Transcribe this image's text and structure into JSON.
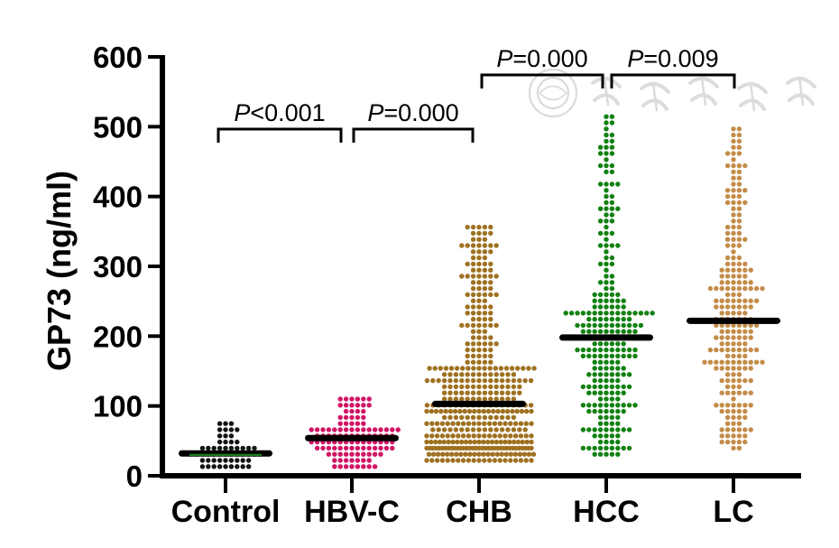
{
  "figure": {
    "background": "#ffffff",
    "axis_color": "#000000",
    "watermark": {
      "text": "中华医学会",
      "color": "#d7d7d7"
    }
  },
  "chart_data": {
    "type": "scatter",
    "variant": "beeswarm-dot-plot",
    "title": "",
    "xlabel": "",
    "ylabel": "GP73 (ng/ml)",
    "ylim": [
      0,
      600
    ],
    "yticks": [
      0,
      100,
      200,
      300,
      400,
      500,
      600
    ],
    "grid": false,
    "legend_position": "none",
    "categories": [
      "Control",
      "HBV-C",
      "CHB",
      "HCC",
      "LC"
    ],
    "series": [
      {
        "name": "Control",
        "color": "#141414",
        "n": 55,
        "min": 8,
        "q1": 24,
        "median": 32,
        "q3": 44,
        "max": 78
      },
      {
        "name": "HBV-C",
        "color": "#d11465",
        "n": 110,
        "min": 10,
        "q1": 38,
        "median": 54,
        "q3": 68,
        "max": 115
      },
      {
        "name": "CHB",
        "color": "#9e7120",
        "n": 420,
        "min": 20,
        "q1": 52,
        "median": 103,
        "q3": 160,
        "max": 360
      },
      {
        "name": "HCC",
        "color": "#128112",
        "n": 260,
        "min": 28,
        "q1": 120,
        "median": 198,
        "q3": 252,
        "max": 512
      },
      {
        "name": "LC",
        "color": "#c38c48",
        "n": 230,
        "min": 40,
        "q1": 150,
        "median": 222,
        "q3": 300,
        "max": 495
      }
    ],
    "median_bar": {
      "color": "#000000",
      "width": 104,
      "thickness": 7,
      "control_accent_color": "#1d7a1d"
    },
    "comparisons": [
      {
        "groups": [
          "Control",
          "HBV-C"
        ],
        "label": "P<0.001",
        "level": "low"
      },
      {
        "groups": [
          "HBV-C",
          "CHB"
        ],
        "label": "P=0.000",
        "level": "low"
      },
      {
        "groups": [
          "CHB",
          "HCC"
        ],
        "label": "P=0.000",
        "level": "high"
      },
      {
        "groups": [
          "HCC",
          "LC"
        ],
        "label": "P=0.009",
        "level": "high"
      }
    ]
  }
}
